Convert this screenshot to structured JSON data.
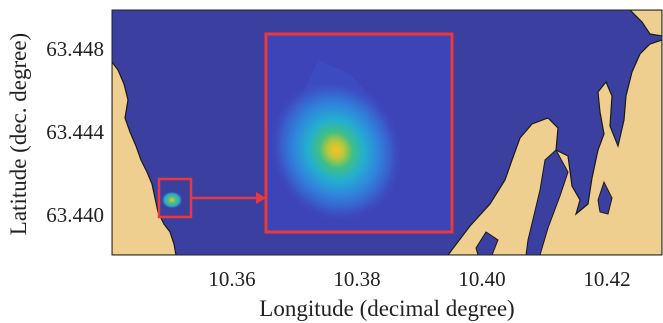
{
  "colors": {
    "water": "#3b3f9f",
    "land": "#efcf8f",
    "coast": "#1a1a1a",
    "highlight": "#e8393c",
    "heat_low": "#3d44b8",
    "heat_mid": "#27a9c9",
    "heat_high": "#f3c12e"
  },
  "chart_data": {
    "type": "heatmap",
    "title": "",
    "xlabel": "Longitude (decimal degree)",
    "ylabel": "Latitude (dec. degree)",
    "x_ticks": [
      "10.36",
      "10.38",
      "10.40",
      "10.42"
    ],
    "y_ticks": [
      "63.440",
      "63.444",
      "63.448"
    ],
    "xlim": [
      10.341,
      10.427
    ],
    "ylim": [
      63.4382,
      63.4503
    ],
    "grid": false,
    "legend": "none",
    "hotspot": {
      "lon": 10.3505,
      "lat": 63.4407
    },
    "inset": "zoom of highlighted region near the hotspot"
  }
}
